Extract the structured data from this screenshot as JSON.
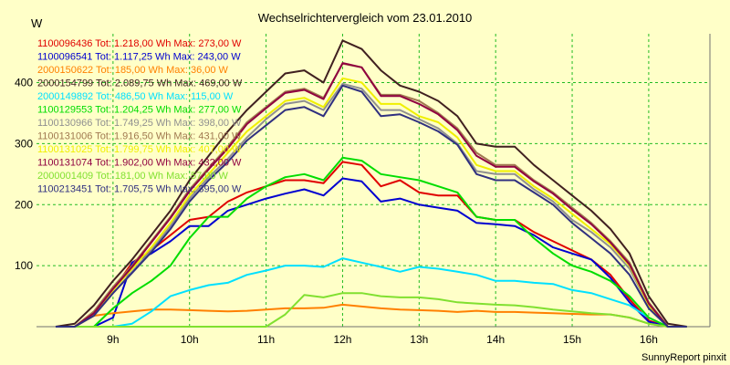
{
  "chart_data": {
    "type": "line",
    "title": "Wechselrichtervergleich vom 23.01.2010",
    "ylabel": "W",
    "xlabel": "",
    "footer": "SunnyReport pinxit",
    "grid": true,
    "legend_position": "top-left",
    "xlim": [
      8.0,
      16.8
    ],
    "ylim": [
      0,
      480
    ],
    "x_ticks": [
      {
        "value": 9,
        "label": "9h"
      },
      {
        "value": 10,
        "label": "10h"
      },
      {
        "value": 11,
        "label": "11h"
      },
      {
        "value": 12,
        "label": "12h"
      },
      {
        "value": 13,
        "label": "13h"
      },
      {
        "value": 14,
        "label": "14h"
      },
      {
        "value": 15,
        "label": "15h"
      },
      {
        "value": 16,
        "label": "16h"
      }
    ],
    "y_ticks": [
      {
        "value": 100,
        "label": "100"
      },
      {
        "value": 200,
        "label": "200"
      },
      {
        "value": 300,
        "label": "300"
      },
      {
        "value": 400,
        "label": "400"
      }
    ],
    "x": [
      8.25,
      8.5,
      8.75,
      9.0,
      9.25,
      9.5,
      9.75,
      10.0,
      10.25,
      10.5,
      10.75,
      11.0,
      11.25,
      11.5,
      11.75,
      12.0,
      12.25,
      12.5,
      12.75,
      13.0,
      13.25,
      13.5,
      13.75,
      14.0,
      14.25,
      14.5,
      14.75,
      15.0,
      15.25,
      15.5,
      15.75,
      16.0,
      16.25,
      16.5
    ],
    "series": [
      {
        "name": "1100096436 Tot: 1.218,00 Wh Max: 273,00 W",
        "color": "#e00000",
        "values": [
          0,
          0,
          20,
          60,
          105,
          125,
          150,
          175,
          180,
          205,
          220,
          230,
          240,
          240,
          235,
          270,
          265,
          230,
          240,
          220,
          215,
          215,
          180,
          175,
          175,
          155,
          140,
          125,
          110,
          85,
          45,
          10,
          0,
          0
        ]
      },
      {
        "name": "1100096541 Tot: 1.117,25 Wh Max: 243,00 W",
        "color": "#0000d0",
        "values": [
          0,
          0,
          0,
          15,
          105,
          120,
          140,
          165,
          165,
          190,
          200,
          210,
          218,
          225,
          215,
          243,
          238,
          205,
          210,
          200,
          195,
          190,
          170,
          168,
          165,
          150,
          130,
          120,
          110,
          80,
          40,
          8,
          0,
          0
        ]
      },
      {
        "name": "2000150622 Tot: 185,00 Wh Max: 36,00 W",
        "color": "#ff8000",
        "values": [
          0,
          0,
          18,
          22,
          25,
          28,
          28,
          27,
          26,
          25,
          26,
          28,
          30,
          30,
          31,
          36,
          33,
          30,
          28,
          27,
          26,
          24,
          26,
          24,
          24,
          23,
          22,
          21,
          20,
          20,
          15,
          5,
          0,
          0
        ]
      },
      {
        "name": "2000154799 Tot: 2.089,75 Wh Max: 469,00 W",
        "color": "#402020",
        "values": [
          0,
          5,
          35,
          75,
          110,
          150,
          190,
          240,
          280,
          320,
          355,
          385,
          415,
          420,
          400,
          469,
          455,
          420,
          395,
          385,
          370,
          345,
          300,
          295,
          295,
          265,
          240,
          215,
          190,
          160,
          120,
          50,
          5,
          0
        ]
      },
      {
        "name": "2000149892 Tot: 486,50 Wh Max: 115,00 W",
        "color": "#00e0ff",
        "values": [
          0,
          0,
          0,
          0,
          5,
          25,
          50,
          60,
          68,
          72,
          85,
          92,
          100,
          100,
          98,
          112,
          105,
          98,
          90,
          98,
          95,
          90,
          85,
          75,
          75,
          72,
          70,
          60,
          55,
          45,
          35,
          15,
          0,
          0
        ]
      },
      {
        "name": "1100129553 Tot: 1.204,25 Wh Max: 277,00 W",
        "color": "#00dd00",
        "values": [
          0,
          0,
          0,
          30,
          55,
          75,
          100,
          145,
          180,
          180,
          210,
          230,
          245,
          250,
          240,
          277,
          272,
          250,
          245,
          240,
          230,
          220,
          180,
          175,
          175,
          145,
          120,
          100,
          90,
          75,
          50,
          15,
          0,
          0
        ]
      },
      {
        "name": "1100130966 Tot: 1.749,25 Wh Max: 398,00 W",
        "color": "#909090",
        "values": [
          0,
          0,
          20,
          55,
          90,
          125,
          165,
          210,
          245,
          275,
          310,
          340,
          365,
          370,
          355,
          398,
          390,
          355,
          355,
          340,
          325,
          300,
          255,
          250,
          250,
          225,
          205,
          175,
          155,
          130,
          95,
          35,
          0,
          0
        ]
      },
      {
        "name": "1100131006 Tot: 1.916,50 Wh Max: 431,00 W",
        "color": "#a07850",
        "values": [
          0,
          0,
          25,
          65,
          100,
          140,
          180,
          225,
          260,
          295,
          335,
          360,
          385,
          390,
          375,
          431,
          425,
          380,
          380,
          370,
          350,
          325,
          285,
          265,
          265,
          240,
          220,
          195,
          170,
          140,
          105,
          40,
          0,
          0
        ]
      },
      {
        "name": "1100131025 Tot: 1.799,75 Wh Max: 407,00 W",
        "color": "#f0f000",
        "values": [
          0,
          0,
          20,
          60,
          95,
          130,
          170,
          215,
          250,
          285,
          320,
          345,
          370,
          375,
          360,
          407,
          400,
          365,
          365,
          345,
          335,
          310,
          265,
          255,
          255,
          230,
          210,
          185,
          160,
          135,
          100,
          35,
          0,
          0
        ]
      },
      {
        "name": "1100131074 Tot: 1.902,00 Wh Max: 432,00 W",
        "color": "#900040",
        "values": [
          0,
          0,
          22,
          62,
          98,
          138,
          178,
          222,
          258,
          292,
          332,
          358,
          383,
          388,
          373,
          432,
          425,
          378,
          378,
          365,
          348,
          322,
          280,
          262,
          262,
          238,
          218,
          192,
          168,
          138,
          102,
          38,
          0,
          0
        ]
      },
      {
        "name": "2000001409 Tot: 181,00 Wh Max: 57,00 W",
        "color": "#80e030",
        "values": [
          0,
          0,
          0,
          0,
          0,
          0,
          0,
          0,
          0,
          0,
          0,
          0,
          20,
          52,
          48,
          55,
          55,
          50,
          48,
          48,
          45,
          40,
          38,
          36,
          35,
          32,
          28,
          25,
          22,
          20,
          15,
          5,
          0,
          0
        ]
      },
      {
        "name": "1100213451 Tot: 1.705,75 Wh Max: 395,00 W",
        "color": "#303080",
        "values": [
          0,
          0,
          18,
          55,
          88,
          122,
          160,
          205,
          240,
          270,
          305,
          330,
          355,
          360,
          345,
          395,
          385,
          345,
          348,
          335,
          320,
          298,
          250,
          240,
          240,
          220,
          200,
          170,
          145,
          120,
          85,
          30,
          0,
          0
        ]
      }
    ]
  }
}
